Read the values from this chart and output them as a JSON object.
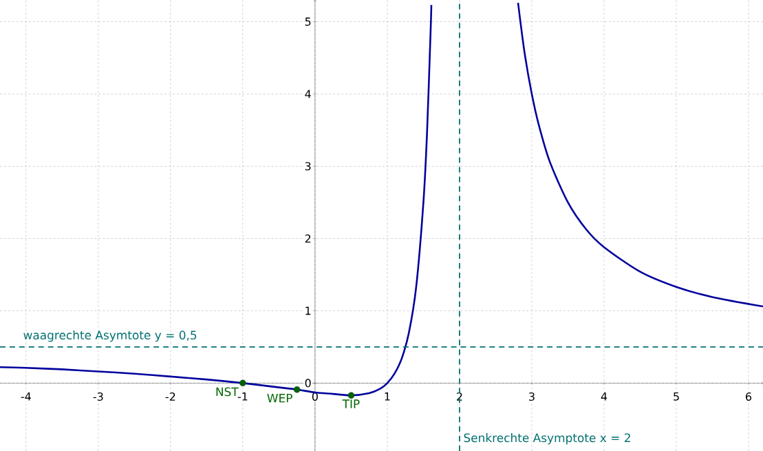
{
  "chart_data": {
    "type": "line",
    "xlim": [
      -4.36,
      6.2
    ],
    "ylim": [
      -0.94,
      5.3
    ],
    "xticks": [
      -4,
      -3,
      -2,
      -1,
      0,
      1,
      2,
      3,
      4,
      5,
      6
    ],
    "yticks": [
      0,
      1,
      2,
      3,
      4,
      5
    ],
    "grid": true,
    "series": [
      {
        "color": "#00009c",
        "marker": "none",
        "x": [
          -4.36,
          -4,
          -3.5,
          -3,
          -2.5,
          -2,
          -1.5,
          -1,
          -0.5,
          -0.25,
          0,
          0.25,
          0.5,
          0.75,
          0.9,
          1,
          1.1,
          1.2,
          1.3,
          1.4,
          1.5,
          1.55,
          1.6,
          1.61,
          2,
          2.81,
          2.9,
          3,
          3.1,
          3.25,
          3.5,
          3.75,
          4,
          4.5,
          5,
          5.5,
          6.2
        ],
        "values": [
          0.22,
          0.21,
          0.19,
          0.16,
          0.13,
          0.09,
          0.05,
          0,
          -0.06,
          -0.09,
          -0.13,
          -0.15,
          -0.17,
          -0.14,
          -0.08,
          0,
          0.13,
          0.34,
          0.7,
          1.33,
          2.5,
          3.46,
          4.88,
          5.23,
          null,
          5.26,
          4.57,
          4,
          3.56,
          3.06,
          2.5,
          2.13,
          1.88,
          1.54,
          1.33,
          1.19,
          1.06
        ]
      },
      {
        "type": "scatter",
        "color": "#006400",
        "marker": "circle",
        "x": [
          -1,
          -0.25,
          0.5
        ],
        "values": [
          0,
          -0.09,
          -0.17
        ]
      }
    ],
    "ref_lines": [
      {
        "axis": "y",
        "value": 0.5,
        "label": "waagrechte Asymtote y = 0,5",
        "color": "#007070",
        "line_style": "dashed"
      },
      {
        "axis": "x",
        "value": 2,
        "label": "Senkrechte Asymptote x = 2",
        "color": "#007070",
        "line_style": "dashed"
      }
    ],
    "annotations": [
      {
        "text": "NST",
        "x": -1,
        "y": 0
      },
      {
        "text": "WEP",
        "x": -0.25,
        "y": -0.09
      },
      {
        "text": "TIP",
        "x": 0.5,
        "y": -0.17
      }
    ]
  }
}
